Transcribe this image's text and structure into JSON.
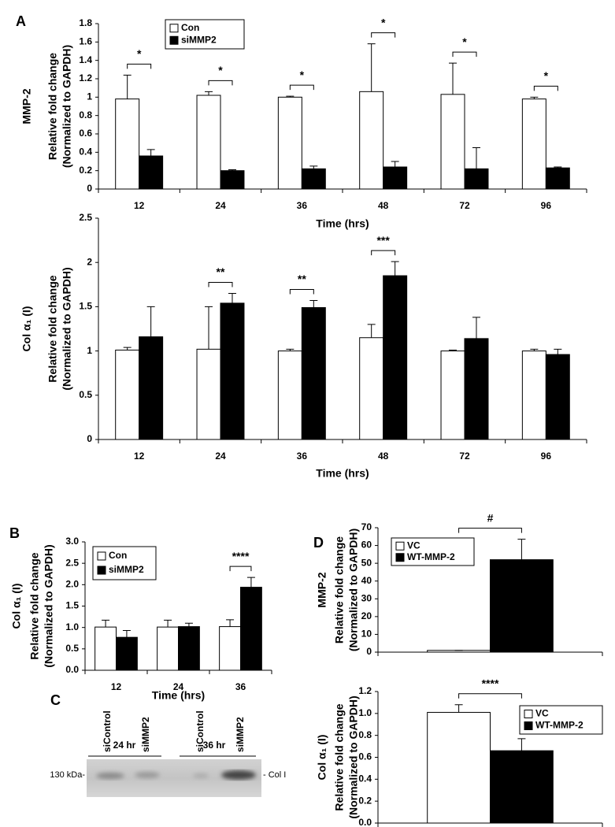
{
  "chart_data": [
    {
      "type": "bar",
      "panel": "A",
      "ylabel_prefix": "MMP-2",
      "ylabel": [
        "Relative fold change",
        "(Normalized to GAPDH)"
      ],
      "xlabel": "Time (hrs)",
      "categories": [
        "12",
        "24",
        "36",
        "48",
        "72",
        "96"
      ],
      "series": [
        {
          "name": "Con",
          "color": "#ffffff",
          "values": [
            0.98,
            1.02,
            1.0,
            1.06,
            1.03,
            0.98
          ],
          "errors": [
            0.26,
            0.04,
            0.01,
            0.52,
            0.34,
            0.02
          ]
        },
        {
          "name": "siMMP2",
          "color": "#000000",
          "values": [
            0.36,
            0.2,
            0.22,
            0.24,
            0.22,
            0.23
          ],
          "errors": [
            0.07,
            0.01,
            0.03,
            0.06,
            0.23,
            0.01
          ]
        }
      ],
      "significance": [
        "*",
        "*",
        "*",
        "*",
        "*",
        "*"
      ],
      "ylim": [
        0,
        1.8
      ],
      "yticks": [
        0,
        0.2,
        0.4,
        0.6,
        0.8,
        1,
        1.2,
        1.4,
        1.6,
        1.8
      ],
      "legend": "upper left"
    },
    {
      "type": "bar",
      "ylabel_prefix": "Col α₁ (I)",
      "ylabel": [
        "Relative fold change",
        "(Normalized to GAPDH)"
      ],
      "xlabel": "Time (hrs)",
      "categories": [
        "12",
        "24",
        "36",
        "48",
        "72",
        "96"
      ],
      "series": [
        {
          "color": "#ffffff",
          "values": [
            1.01,
            1.02,
            1.0,
            1.15,
            1.0,
            1.0
          ],
          "errors": [
            0.03,
            0.48,
            0.02,
            0.15,
            0.01,
            0.02
          ]
        },
        {
          "color": "#000000",
          "values": [
            1.16,
            1.54,
            1.49,
            1.85,
            1.14,
            0.96
          ],
          "errors": [
            0.34,
            0.11,
            0.08,
            0.16,
            0.24,
            0.06
          ]
        }
      ],
      "significance": [
        null,
        "**",
        "**",
        "***",
        null,
        null
      ],
      "ylim": [
        0,
        2.5
      ],
      "yticks": [
        0,
        0.5,
        1,
        1.5,
        2,
        2.5
      ]
    },
    {
      "type": "bar",
      "panel": "B",
      "ylabel_prefix": "Col α₁ (I)",
      "ylabel": [
        "Relative fold change",
        "(Normalized to GAPDH)"
      ],
      "xlabel": "Time (hrs)",
      "categories": [
        "12",
        "24",
        "36"
      ],
      "series": [
        {
          "name": "Con",
          "color": "#ffffff",
          "values": [
            1.01,
            1.01,
            1.02
          ],
          "errors": [
            0.16,
            0.16,
            0.16
          ]
        },
        {
          "name": "siMMP2",
          "color": "#000000",
          "values": [
            0.77,
            1.02,
            1.94
          ],
          "errors": [
            0.16,
            0.08,
            0.23
          ]
        }
      ],
      "significance": [
        null,
        null,
        "****"
      ],
      "ylim": [
        0,
        3.0
      ],
      "yticks": [
        {
          "value": 0,
          "label": "0.0"
        },
        {
          "value": 0.5,
          "label": "0.5"
        },
        {
          "value": 1,
          "label": "1.0"
        },
        {
          "value": 1.5,
          "label": "1.5"
        },
        {
          "value": 2,
          "label": "2.0"
        },
        {
          "value": 2.5,
          "label": "2.5"
        },
        {
          "value": 3,
          "label": "3.0"
        }
      ],
      "legend": "upper left"
    },
    {
      "type": "bar",
      "panel": "D",
      "ylabel_prefix": "MMP-2",
      "ylabel": [
        "Relative fold change",
        "(Normalized to GAPDH)"
      ],
      "categories": [
        null
      ],
      "series": [
        {
          "name": "VC",
          "color": "#ffffff",
          "values": [
            1
          ],
          "errors": [
            0
          ]
        },
        {
          "name": "WT-MMP-2",
          "color": "#000000",
          "values": [
            52
          ],
          "errors": [
            11.5
          ]
        }
      ],
      "significance": [
        "#"
      ],
      "ylim": [
        0,
        70
      ],
      "yticks": [
        0,
        10,
        20,
        30,
        40,
        50,
        60,
        70
      ],
      "legend": "upper left"
    },
    {
      "type": "bar",
      "ylabel_prefix": "Col α₁ (I)",
      "ylabel": [
        "Relative fold change",
        "(Normalized to GAPDH)"
      ],
      "categories": [
        null
      ],
      "series": [
        {
          "name": "VC",
          "color": "#ffffff",
          "values": [
            1.01
          ],
          "errors": [
            0.07
          ]
        },
        {
          "name": "WT-MMP-2",
          "color": "#000000",
          "values": [
            0.66
          ],
          "errors": [
            0.11
          ]
        }
      ],
      "significance": [
        "****"
      ],
      "ylim": [
        0,
        1.2
      ],
      "yticks": [
        {
          "value": 0,
          "label": "0.0"
        },
        {
          "value": 0.2,
          "label": "0.2"
        },
        {
          "value": 0.4,
          "label": "0.4"
        },
        {
          "value": 0.6,
          "label": "0.6"
        },
        {
          "value": 0.8,
          "label": "0.8"
        },
        {
          "value": 1,
          "label": "1.0"
        },
        {
          "value": 1.2,
          "label": "1.2"
        }
      ],
      "legend": "upper right"
    }
  ],
  "blot": {
    "panel": "C",
    "lanes": [
      "siControl",
      "siMMP2",
      "siControl",
      "siMMP2"
    ],
    "groups": [
      "24 hr",
      "36 hr"
    ],
    "marker": "130 kDa-",
    "band": "- Col I"
  }
}
